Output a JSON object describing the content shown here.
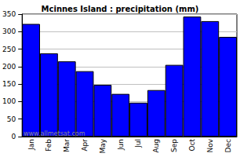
{
  "chart_data": {
    "type": "bar",
    "title": "Mcinnes Island : precipitation (mm)",
    "categories": [
      "Jan",
      "Feb",
      "Mar",
      "Apr",
      "May",
      "Jun",
      "Jul",
      "Aug",
      "Sep",
      "Oct",
      "Nov",
      "Dec"
    ],
    "values": [
      322,
      238,
      215,
      187,
      148,
      122,
      97,
      133,
      205,
      343,
      330,
      285
    ],
    "color": "#0000ff",
    "ylim": [
      0,
      350
    ],
    "yticks": [
      0,
      50,
      100,
      150,
      200,
      250,
      300,
      350
    ],
    "grid": true,
    "annotations": [
      "www.allmetsat.com"
    ]
  }
}
